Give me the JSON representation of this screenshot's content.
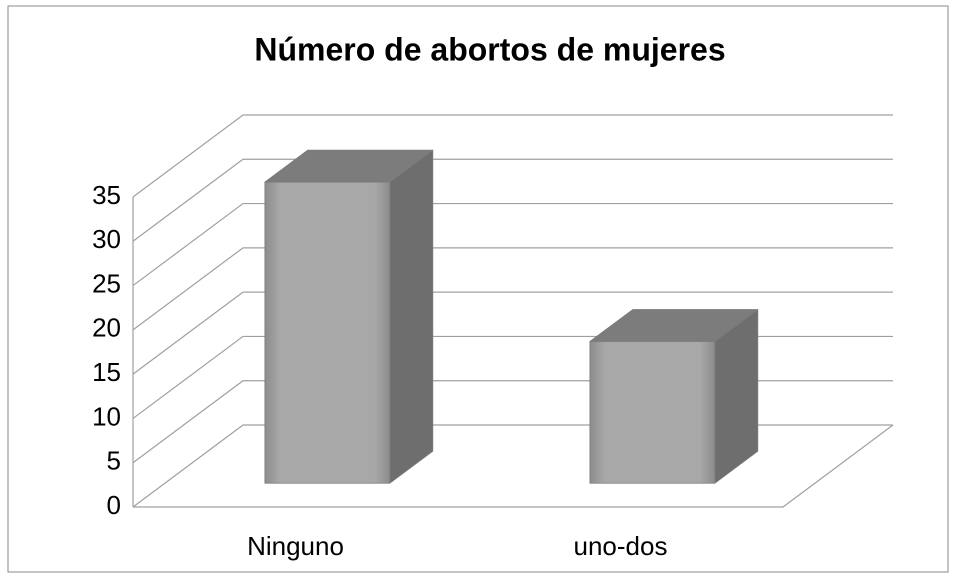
{
  "chart_data": {
    "type": "bar3d",
    "title": "Número de abortos de mujeres",
    "categories": [
      "Ninguno",
      "uno-dos"
    ],
    "values": [
      34,
      16
    ],
    "color": "#a6a6a6",
    "ylim": [
      0,
      35
    ],
    "yticks": [
      0,
      5,
      10,
      15,
      20,
      25,
      30,
      35
    ],
    "grid": true
  }
}
